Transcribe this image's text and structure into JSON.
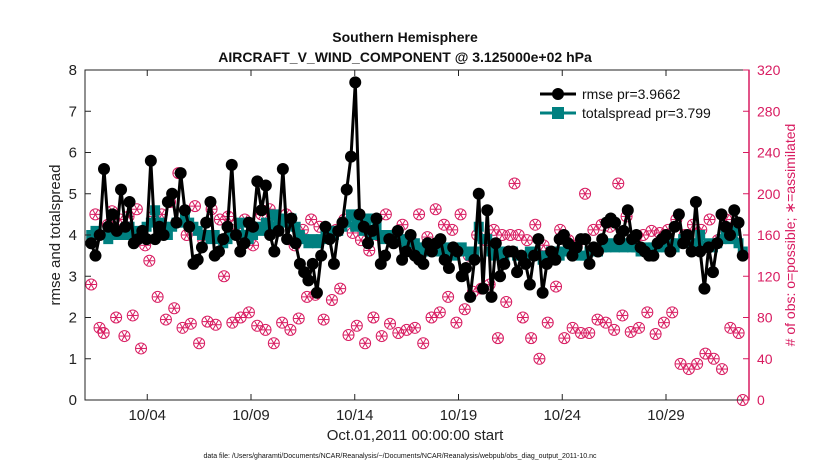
{
  "chart_data": {
    "type": "line",
    "title": "Southern Hemisphere",
    "subtitle": "AIRCRAFT_V_WIND_COMPONENT @ 3.125000e+02 hPa",
    "xlabel": "Oct.01,2011 00:00:00 start",
    "ylabel": "rmse and totalspread",
    "ylabel_right": "# of obs: o=possible; ∗=assimilated",
    "footer": "data file: /Users/gharamti/Documents/NCAR/Reanalysis/~/Documents/NCAR/Reanalysis/webpub/obs_diag_output_2011-10.nc",
    "x_range": [
      1,
      33
    ],
    "ylim": [
      0,
      8
    ],
    "ylim_right": [
      0,
      320
    ],
    "x_ticks": [
      4,
      9,
      14,
      19,
      24,
      29
    ],
    "x_tick_labels": [
      "10/04",
      "10/09",
      "10/14",
      "10/19",
      "10/24",
      "10/29"
    ],
    "y_ticks": [
      0,
      1,
      2,
      3,
      4,
      5,
      6,
      7,
      8
    ],
    "y_tick_labels": [
      "0",
      "1",
      "2",
      "3",
      "4",
      "5",
      "6",
      "7",
      "8"
    ],
    "y_right_ticks": [
      0,
      40,
      80,
      120,
      160,
      200,
      240,
      280,
      320
    ],
    "y_right_tick_labels": [
      "0",
      "40",
      "80",
      "120",
      "160",
      "200",
      "240",
      "280",
      "320"
    ],
    "legend_position": "top-right",
    "colors": {
      "rmse": "#000000",
      "totalspread": "#008080",
      "obs": "#d81b60"
    },
    "series": [
      {
        "name": "rmse pr=3.9662",
        "values": [
          3.8,
          3.5,
          4.0,
          5.6,
          4.2,
          4.5,
          4.1,
          5.1,
          4.2,
          4.8,
          3.8,
          3.9,
          4.1,
          3.9,
          5.8,
          3.9,
          4.2,
          4.0,
          4.8,
          5.0,
          4.3,
          5.5,
          4.6,
          4.2,
          3.3,
          3.4,
          3.7,
          4.3,
          4.8,
          3.5,
          3.6,
          3.9,
          4.2,
          5.7,
          4.0,
          3.6,
          3.8,
          4.3,
          4.2,
          5.3,
          4.6,
          5.2,
          4.0,
          3.6,
          4.1,
          5.6,
          3.9,
          4.4,
          3.8,
          3.3,
          3.1,
          2.9,
          3.3,
          2.6,
          3.5,
          4.2,
          3.9,
          3.3,
          4.1,
          4.3,
          5.1,
          5.9,
          7.7,
          4.5,
          4.2,
          3.8,
          4.1,
          4.4,
          3.3,
          3.5,
          3.9,
          3.8,
          4.1,
          3.4,
          3.6,
          4.0,
          3.5,
          3.4,
          3.3,
          3.8,
          3.6,
          3.8,
          3.9,
          3.4,
          3.2,
          3.7,
          3.6,
          3.0,
          3.2,
          2.5,
          3.4,
          5.0,
          2.7,
          4.6,
          2.5,
          3.8,
          3.0,
          3.3,
          3.6,
          3.6,
          3.1,
          3.5,
          3.3,
          2.8,
          3.5,
          3.9,
          2.6,
          3.3,
          3.6,
          3.4,
          3.9,
          4.0,
          3.8,
          3.5,
          3.7,
          3.9,
          3.9,
          3.3,
          3.7,
          3.6,
          3.9,
          4.3,
          4.4,
          4.3,
          3.9,
          4.1,
          4.6,
          3.9,
          4.0,
          3.7,
          3.6,
          3.5,
          3.5,
          3.8,
          3.9,
          4.0,
          3.6,
          4.2,
          4.5,
          3.8,
          4.0,
          3.6,
          4.8,
          3.6,
          2.7,
          3.7,
          3.1,
          3.8,
          4.5,
          4.2,
          4.0,
          4.6,
          4.3,
          3.5
        ]
      },
      {
        "name": "totalspread pr=3.799",
        "values": [
          4.0,
          4.1,
          4.0,
          4.0,
          3.9,
          4.1,
          4.0,
          4.1,
          4.0,
          4.2,
          4.0,
          4.1,
          4.0,
          4.2,
          4.3,
          4.6,
          4.3,
          4.2,
          4.0,
          4.2,
          4.3,
          4.3,
          4.4,
          4.3,
          4.2,
          4.1,
          4.0,
          4.0,
          3.9,
          4.0,
          3.9,
          3.8,
          3.9,
          4.0,
          4.0,
          4.3,
          4.0,
          3.9,
          4.0,
          4.2,
          4.1,
          4.3,
          4.2,
          4.5,
          4.3,
          4.4,
          4.3,
          4.4,
          4.2,
          4.0,
          3.9,
          3.8,
          3.9,
          3.8,
          3.9,
          4.0,
          4.1,
          4.0,
          4.1,
          4.2,
          4.3,
          4.5,
          4.2,
          4.4,
          4.1,
          4.4,
          4.0,
          4.2,
          4.0,
          3.9,
          4.0,
          4.0,
          3.9,
          3.9,
          3.8,
          3.9,
          3.8,
          3.7,
          3.6,
          3.7,
          3.6,
          3.6,
          3.7,
          3.6,
          3.7,
          3.5,
          3.6,
          3.7,
          3.6,
          3.5,
          3.6,
          4.2,
          3.9,
          3.9,
          3.6,
          3.5,
          3.6,
          3.5,
          3.6,
          3.6,
          3.5,
          3.5,
          3.4,
          3.6,
          3.6,
          3.5,
          3.4,
          3.5,
          3.6,
          3.6,
          3.5,
          3.6,
          3.6,
          3.6,
          3.6,
          3.5,
          3.5,
          3.6,
          3.6,
          3.6,
          3.7,
          3.7,
          3.8,
          3.7,
          3.8,
          3.7,
          3.8,
          3.7,
          3.7,
          3.6,
          3.7,
          3.6,
          3.7,
          3.7,
          3.8,
          3.7,
          3.8,
          3.7,
          3.8,
          3.9,
          3.8,
          3.7,
          3.8,
          4.0,
          3.7,
          3.8,
          3.7,
          3.8,
          3.9,
          4.0,
          3.9,
          4.1,
          3.8,
          3.6
        ]
      },
      {
        "name": "obs possible",
        "values": [
          112,
          180,
          70,
          65,
          170,
          183,
          80,
          175,
          62,
          178,
          82,
          185,
          50,
          150,
          135,
          178,
          100,
          180,
          78,
          192,
          89,
          220,
          70,
          160,
          74,
          188,
          55,
          155,
          76,
          185,
          73,
          175,
          120,
          178,
          75,
          170,
          80,
          175,
          85,
          150,
          72,
          180,
          68,
          185,
          55,
          165,
          75,
          180,
          68,
          150,
          79,
          165,
          100,
          175,
          102,
          168,
          78,
          158,
          97,
          165,
          108,
          175,
          63,
          162,
          72,
          155,
          55,
          145,
          80,
          160,
          62,
          180,
          74,
          160,
          65,
          170,
          68,
          155,
          70,
          180,
          55,
          158,
          80,
          185,
          85,
          170,
          100,
          165,
          75,
          180,
          88,
          140,
          105,
          160,
          108,
          155,
          112,
          165,
          60,
          160,
          95,
          160,
          210,
          160,
          80,
          155,
          60,
          170,
          40,
          150,
          75,
          140,
          110,
          165,
          60,
          155,
          70,
          150,
          65,
          200,
          65,
          165,
          78,
          170,
          75,
          168,
          68,
          210,
          82,
          178,
          66,
          155,
          70,
          160,
          85,
          164,
          64,
          162,
          75,
          165,
          85,
          175,
          35,
          160,
          30,
          170,
          35,
          165,
          45,
          175,
          40,
          155,
          30,
          175,
          70,
          160,
          65,
          0
        ]
      }
    ]
  }
}
